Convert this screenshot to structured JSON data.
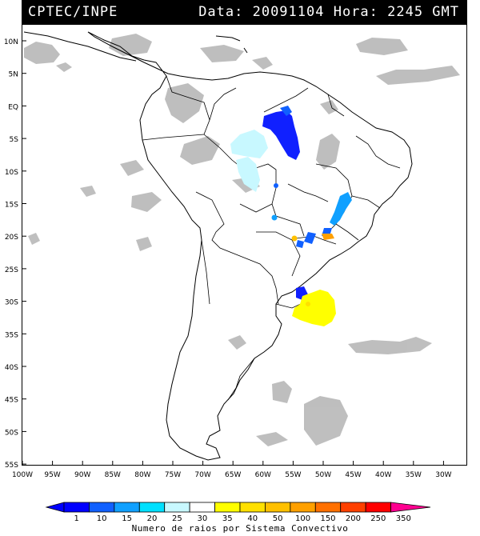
{
  "header": {
    "source": "CPTEC/INPE",
    "timestamp": "Data: 20091104 Hora: 2245 GMT"
  },
  "map": {
    "lat_ticks": [
      "10N",
      "5N",
      "EQ",
      "5S",
      "10S",
      "15S",
      "20S",
      "25S",
      "30S",
      "35S",
      "40S",
      "45S",
      "50S",
      "55S"
    ],
    "lon_ticks": [
      "100W",
      "95W",
      "90W",
      "85W",
      "80W",
      "75W",
      "70W",
      "65W",
      "60W",
      "55W",
      "50W",
      "45W",
      "40W",
      "35W",
      "30W"
    ],
    "lat_range": [
      -56,
      12
    ],
    "lon_range": [
      -100,
      -29
    ]
  },
  "colorbar": {
    "ticks": [
      "1",
      "10",
      "15",
      "20",
      "25",
      "30",
      "35",
      "40",
      "50",
      "100",
      "150",
      "200",
      "250",
      "350"
    ],
    "colors": [
      "#0000ff",
      "#1060ff",
      "#10a0ff",
      "#00e0ff",
      "#c8f8ff",
      "#ffffff",
      "#ffff00",
      "#ffe000",
      "#ffc000",
      "#ffa000",
      "#ff7000",
      "#ff4000",
      "#ff0000",
      "#ff0090"
    ],
    "caption": "Numero de raios por Sistema Convectivo"
  }
}
